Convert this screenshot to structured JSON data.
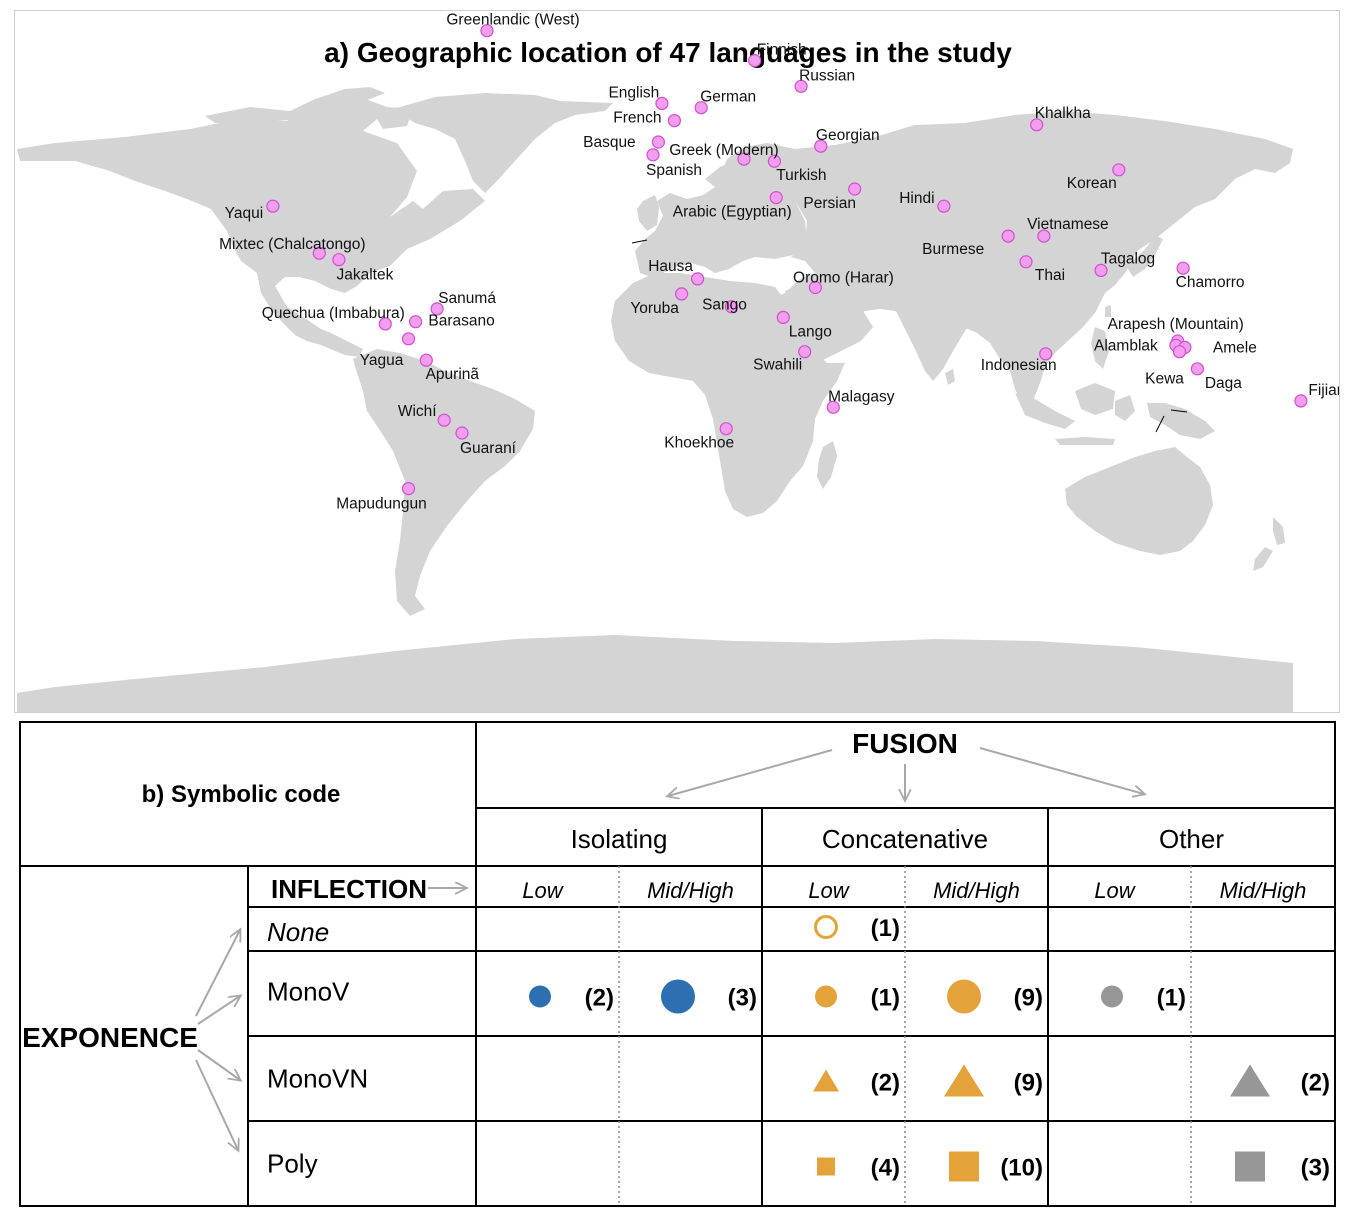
{
  "panel_a": {
    "title": "a) Geographic location of 47 languages in the study",
    "land_color": "#d4d4d4",
    "marker_fill": "#f29ded",
    "marker_stroke": "#d14fd1",
    "languages": [
      {
        "name": "Greenlandic (West)",
        "lon": -50,
        "lat": 69
      },
      {
        "name": "Yaqui",
        "lon": -110,
        "lat": 28
      },
      {
        "name": "Mixtec (Chalcatongo)",
        "lon": -97,
        "lat": 17
      },
      {
        "name": "Jakaltek",
        "lon": -91.5,
        "lat": 15.5
      },
      {
        "name": "Quechua (Imbabura)",
        "lon": -78.5,
        "lat": 0.5
      },
      {
        "name": "Sanumá",
        "lon": -64,
        "lat": 4
      },
      {
        "name": "Yagua",
        "lon": -72,
        "lat": -3
      },
      {
        "name": "Barasano",
        "lon": -70,
        "lat": 1
      },
      {
        "name": "Apurinã",
        "lon": -67,
        "lat": -8
      },
      {
        "name": "Wichí",
        "lon": -62,
        "lat": -22
      },
      {
        "name": "Guaraní",
        "lon": -57,
        "lat": -25
      },
      {
        "name": "Mapudungun",
        "lon": -72,
        "lat": -38
      },
      {
        "name": "English",
        "lon": -1,
        "lat": 52
      },
      {
        "name": "French",
        "lon": 2.5,
        "lat": 48
      },
      {
        "name": "Basque",
        "lon": -2,
        "lat": 43
      },
      {
        "name": "Spanish",
        "lon": -3.5,
        "lat": 40
      },
      {
        "name": "German",
        "lon": 10,
        "lat": 51
      },
      {
        "name": "Greek (Modern)",
        "lon": 22,
        "lat": 39
      },
      {
        "name": "Finnish",
        "lon": 25,
        "lat": 62
      },
      {
        "name": "Russian",
        "lon": 38,
        "lat": 56
      },
      {
        "name": "Georgian",
        "lon": 43.5,
        "lat": 42
      },
      {
        "name": "Turkish",
        "lon": 30.5,
        "lat": 38.5
      },
      {
        "name": "Arabic (Egyptian)",
        "lon": 31,
        "lat": 30
      },
      {
        "name": "Persian",
        "lon": 53,
        "lat": 32
      },
      {
        "name": "Hindi",
        "lon": 78,
        "lat": 28
      },
      {
        "name": "Khalkha",
        "lon": 104,
        "lat": 47
      },
      {
        "name": "Korean",
        "lon": 127,
        "lat": 36.5
      },
      {
        "name": "Burmese",
        "lon": 96,
        "lat": 21
      },
      {
        "name": "Vietnamese",
        "lon": 106,
        "lat": 21
      },
      {
        "name": "Thai",
        "lon": 101,
        "lat": 15
      },
      {
        "name": "Tagalog",
        "lon": 122,
        "lat": 13
      },
      {
        "name": "Chamorro",
        "lon": 145,
        "lat": 13.5
      },
      {
        "name": "Hausa",
        "lon": 9,
        "lat": 11
      },
      {
        "name": "Sango",
        "lon": 18.5,
        "lat": 4.5
      },
      {
        "name": "Yoruba",
        "lon": 4.5,
        "lat": 7.5
      },
      {
        "name": "Oromo (Harar)",
        "lon": 42,
        "lat": 9
      },
      {
        "name": "Lango",
        "lon": 33,
        "lat": 2
      },
      {
        "name": "Swahili",
        "lon": 39,
        "lat": -6
      },
      {
        "name": "Malagasy",
        "lon": 47,
        "lat": -19
      },
      {
        "name": "Khoekhoe",
        "lon": 17,
        "lat": -24
      },
      {
        "name": "Indonesian",
        "lon": 106.5,
        "lat": -6.5
      },
      {
        "name": "Arapesh (Mountain)",
        "lon": 143.5,
        "lat": -3.5
      },
      {
        "name": "Alamblak",
        "lon": 143,
        "lat": -4.5
      },
      {
        "name": "Amele",
        "lon": 145.5,
        "lat": -5
      },
      {
        "name": "Kewa",
        "lon": 144,
        "lat": -6
      },
      {
        "name": "Daga",
        "lon": 149,
        "lat": -10
      },
      {
        "name": "Fijian",
        "lon": 178,
        "lat": -17.5
      }
    ]
  },
  "panel_b": {
    "title": "b) Symbolic code",
    "fusion_label": "FUSION",
    "inflection_label": "INFLECTION",
    "exponence_label": "EXPONENCE",
    "fusion_columns": [
      "Isolating",
      "Concatenative",
      "Other"
    ],
    "inflection_levels": [
      "Low",
      "Mid/High"
    ],
    "exponence_rows": [
      "None",
      "MonoV",
      "MonoVN",
      "Poly"
    ],
    "colors": {
      "isolating": "#2e6fb2",
      "concatenative": "#e3a33a",
      "other": "#979797",
      "arrow": "#a8a8a8"
    },
    "cells": [
      {
        "row": 0,
        "col": 2,
        "shape": "open-circle",
        "size": "small",
        "count": "(1)"
      },
      {
        "row": 1,
        "col": 0,
        "shape": "circle",
        "size": "small",
        "count": "(2)"
      },
      {
        "row": 1,
        "col": 1,
        "shape": "circle",
        "size": "large",
        "count": "(3)"
      },
      {
        "row": 1,
        "col": 2,
        "shape": "circle",
        "size": "small",
        "count": "(1)"
      },
      {
        "row": 1,
        "col": 3,
        "shape": "circle",
        "size": "large",
        "count": "(9)"
      },
      {
        "row": 1,
        "col": 4,
        "shape": "circle",
        "size": "small",
        "count": "(1)"
      },
      {
        "row": 2,
        "col": 2,
        "shape": "triangle",
        "size": "small",
        "count": "(2)"
      },
      {
        "row": 2,
        "col": 3,
        "shape": "triangle",
        "size": "large",
        "count": "(9)"
      },
      {
        "row": 2,
        "col": 5,
        "shape": "triangle",
        "size": "large",
        "count": "(2)"
      },
      {
        "row": 3,
        "col": 2,
        "shape": "square",
        "size": "small",
        "count": "(4)"
      },
      {
        "row": 3,
        "col": 3,
        "shape": "square",
        "size": "large",
        "count": "(10)"
      },
      {
        "row": 3,
        "col": 5,
        "shape": "square",
        "size": "large",
        "count": "(3)"
      }
    ]
  }
}
